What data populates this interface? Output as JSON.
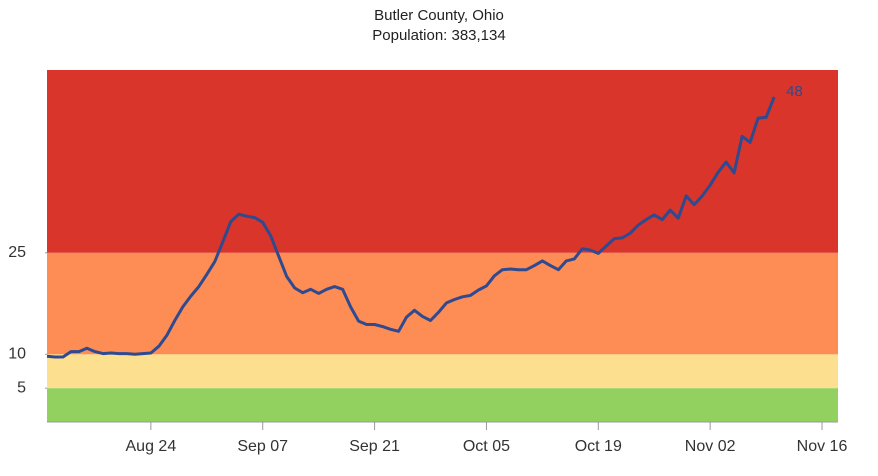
{
  "chart_data": {
    "type": "line",
    "title": "Butler County, Ohio",
    "subtitle": "Population: 383,134",
    "x": [
      "Aug 11",
      "Aug 12",
      "Aug 13",
      "Aug 14",
      "Aug 15",
      "Aug 16",
      "Aug 17",
      "Aug 18",
      "Aug 19",
      "Aug 20",
      "Aug 21",
      "Aug 22",
      "Aug 23",
      "Aug 24",
      "Aug 25",
      "Aug 26",
      "Aug 27",
      "Aug 28",
      "Aug 29",
      "Aug 30",
      "Aug 31",
      "Sep 01",
      "Sep 02",
      "Sep 03",
      "Sep 04",
      "Sep 05",
      "Sep 06",
      "Sep 07",
      "Sep 08",
      "Sep 09",
      "Sep 10",
      "Sep 11",
      "Sep 12",
      "Sep 13",
      "Sep 14",
      "Sep 15",
      "Sep 16",
      "Sep 17",
      "Sep 18",
      "Sep 19",
      "Sep 20",
      "Sep 21",
      "Sep 22",
      "Sep 23",
      "Sep 24",
      "Sep 25",
      "Sep 26",
      "Sep 27",
      "Sep 28",
      "Sep 29",
      "Sep 30",
      "Oct 01",
      "Oct 02",
      "Oct 03",
      "Oct 04",
      "Oct 05",
      "Oct 06",
      "Oct 07",
      "Oct 08",
      "Oct 09",
      "Oct 10",
      "Oct 11",
      "Oct 12",
      "Oct 13",
      "Oct 14",
      "Oct 15",
      "Oct 16",
      "Oct 17",
      "Oct 18",
      "Oct 19",
      "Oct 20",
      "Oct 21",
      "Oct 22",
      "Oct 23",
      "Oct 24",
      "Oct 25",
      "Oct 26",
      "Oct 27",
      "Oct 28",
      "Oct 29",
      "Oct 30",
      "Oct 31",
      "Nov 01",
      "Nov 02",
      "Nov 03",
      "Nov 04",
      "Nov 05",
      "Nov 06",
      "Nov 07",
      "Nov 08",
      "Nov 09",
      "Nov 10"
    ],
    "series": [
      {
        "color": "#2f4a8f",
        "values": [
          9.7,
          9.6,
          9.6,
          10.4,
          10.4,
          10.9,
          10.4,
          10.1,
          10.2,
          10.1,
          10.1,
          10.0,
          10.1,
          10.2,
          11.2,
          12.8,
          15.0,
          17.0,
          18.6,
          20.0,
          21.8,
          23.7,
          26.6,
          29.6,
          30.7,
          30.4,
          30.2,
          29.5,
          27.5,
          24.5,
          21.5,
          19.8,
          19.1,
          19.6,
          19.0,
          19.6,
          20.0,
          19.6,
          17.0,
          14.9,
          14.4,
          14.4,
          14.1,
          13.7,
          13.4,
          15.5,
          16.5,
          15.6,
          15.0,
          16.2,
          17.6,
          18.1,
          18.5,
          18.7,
          19.5,
          20.1,
          21.6,
          22.5,
          22.6,
          22.5,
          22.5,
          23.1,
          23.8,
          23.1,
          22.5,
          23.8,
          24.1,
          25.6,
          25.4,
          24.9,
          26.0,
          27.1,
          27.2,
          27.9,
          29.1,
          29.9,
          30.6,
          29.9,
          31.3,
          30.1,
          33.4,
          32.1,
          33.4,
          35.0,
          36.9,
          38.4,
          36.8,
          42.2,
          41.3,
          44.9,
          45.0,
          48
        ]
      }
    ],
    "xlim": [
      "Aug 11",
      "Nov 18"
    ],
    "xticks": [
      "Aug 24",
      "Sep 07",
      "Sep 21",
      "Oct 05",
      "Oct 19",
      "Nov 02",
      "Nov 16"
    ],
    "ylim": [
      0,
      52
    ],
    "yticks": [
      5,
      10,
      25
    ],
    "bands": [
      {
        "from": 0,
        "to": 5,
        "color": "#92d05f"
      },
      {
        "from": 5,
        "to": 10,
        "color": "#fde08f"
      },
      {
        "from": 10,
        "to": 25,
        "color": "#fd8c55"
      },
      {
        "from": 25,
        "to": 52,
        "color": "#d9352a"
      }
    ]
  }
}
